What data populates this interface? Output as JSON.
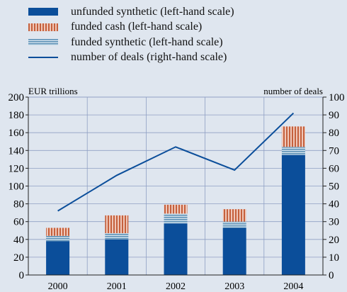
{
  "colors": {
    "background": "#dfe6ef",
    "unfunded_synthetic": "#0b4e9a",
    "funded_cash_dark": "#c5603c",
    "funded_cash_light": "#efc7b9",
    "funded_synthetic_dark": "#5b8fb5",
    "funded_synthetic_light": "#cfe0ec",
    "line": "#0b4e9a",
    "grid": "#8f9fc4"
  },
  "legend": [
    {
      "label": "unfunded synthetic (left-hand scale)",
      "swatch": "solid-blue-swatch"
    },
    {
      "label": "funded cash (left-hand scale)",
      "swatch": "red-striped-swatch"
    },
    {
      "label": "funded synthetic (left-hand scale)",
      "swatch": "blue-striped-swatch"
    },
    {
      "label": "number of deals (right-hand scale)",
      "swatch": "line-swatch"
    }
  ],
  "chart_data": {
    "type": "bar",
    "stacked": true,
    "categories": [
      "2000",
      "2001",
      "2002",
      "2003",
      "2004"
    ],
    "y_left": {
      "label": "EUR trillions",
      "range": [
        0,
        200
      ],
      "ticks": [
        0,
        20,
        40,
        60,
        80,
        100,
        120,
        140,
        160,
        180,
        200
      ]
    },
    "y_right": {
      "label": "number of deals",
      "range": [
        0,
        100
      ],
      "ticks": [
        0,
        10,
        20,
        30,
        40,
        50,
        60,
        70,
        80,
        90,
        100
      ]
    },
    "grid": true,
    "series": [
      {
        "name": "unfunded synthetic (left-hand scale)",
        "kind": "bar",
        "axis": "left",
        "values": [
          38,
          40,
          58,
          53,
          135
        ]
      },
      {
        "name": "funded synthetic (left-hand scale)",
        "kind": "bar",
        "axis": "left",
        "values": [
          6,
          7,
          11,
          7,
          9
        ]
      },
      {
        "name": "funded cash (left-hand scale)",
        "kind": "bar",
        "axis": "left",
        "values": [
          9,
          20,
          10,
          14,
          23
        ]
      },
      {
        "name": "number of deals (right-hand scale)",
        "kind": "line",
        "axis": "right",
        "values": [
          36,
          56,
          72,
          59,
          91
        ]
      }
    ]
  }
}
